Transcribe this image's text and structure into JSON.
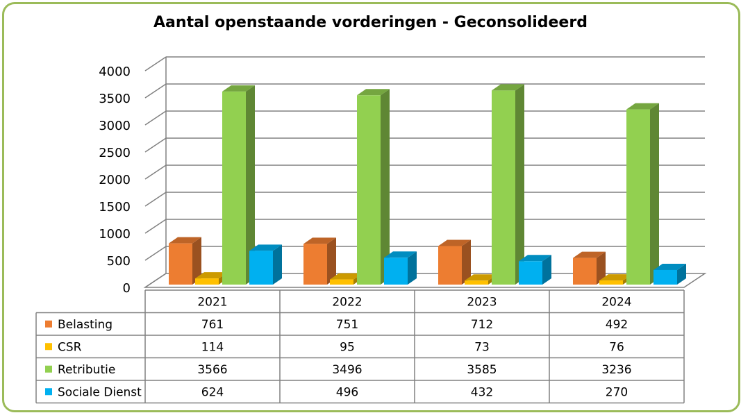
{
  "chart_data": {
    "type": "bar",
    "title": "Aantal openstaande vorderingen - Geconsolideerd",
    "categories": [
      "2021",
      "2022",
      "2023",
      "2024"
    ],
    "series": [
      {
        "name": "Belasting",
        "color": "#ed7d31",
        "values": [
          761,
          751,
          712,
          492
        ]
      },
      {
        "name": "CSR",
        "color": "#ffc000",
        "values": [
          114,
          95,
          73,
          76
        ]
      },
      {
        "name": "Retributie",
        "color": "#92d050",
        "values": [
          3566,
          3496,
          3585,
          3236
        ]
      },
      {
        "name": "Sociale Dienst",
        "color": "#00b0f0",
        "values": [
          624,
          496,
          432,
          270
        ]
      }
    ],
    "yticks": [
      "0",
      "500",
      "1000",
      "1500",
      "2000",
      "2500",
      "3000",
      "3500",
      "4000"
    ],
    "ylim": [
      0,
      4000
    ],
    "grid": true,
    "legend": "data-table",
    "data_table_values": [
      [
        "761",
        "751",
        "712",
        "492"
      ],
      [
        "114",
        "95",
        "73",
        "76"
      ],
      [
        "3566",
        "3496",
        "3585",
        "3236"
      ],
      [
        "624",
        "496",
        "432",
        "270"
      ]
    ],
    "frame_color": "#9bbb59",
    "gridline_color": "#808080"
  }
}
